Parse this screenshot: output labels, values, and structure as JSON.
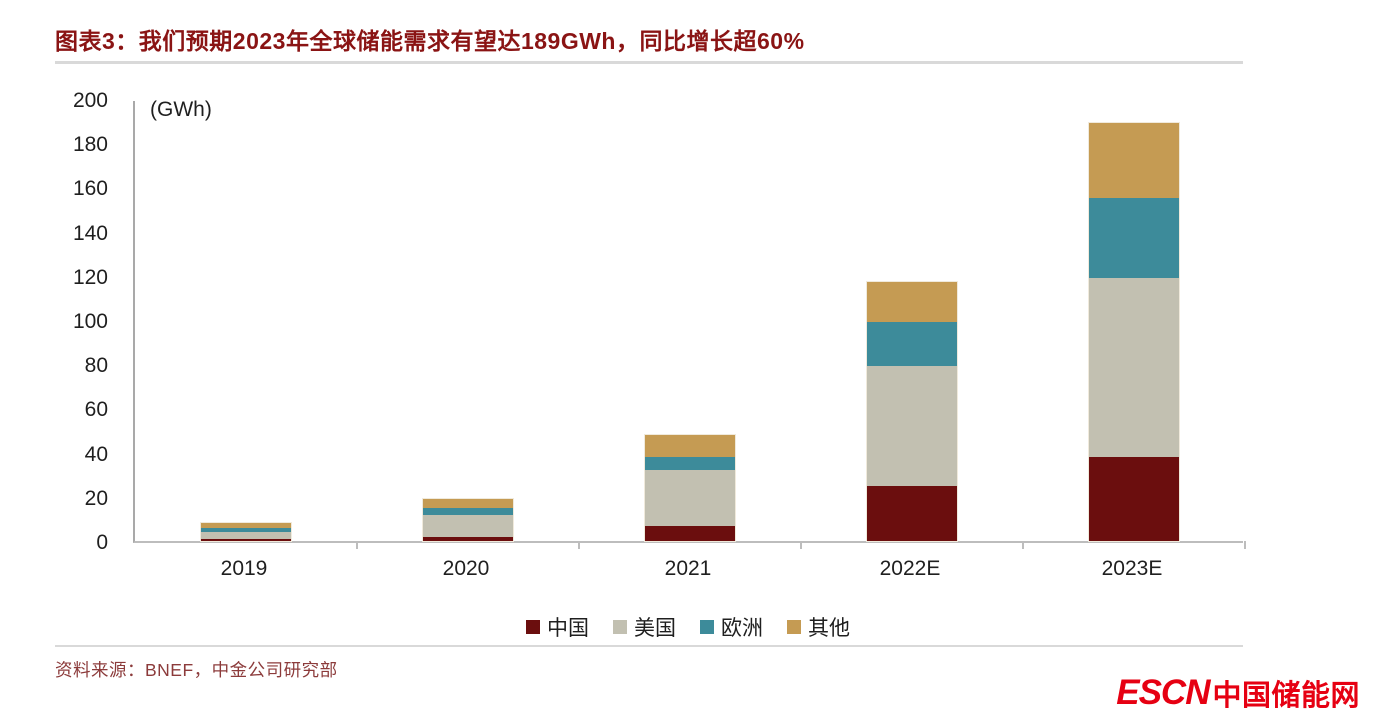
{
  "header": {
    "title": "图表3：我们预期2023年全球储能需求有望达189GWh，同比增长超60%"
  },
  "chart_data": {
    "type": "bar",
    "stacked": true,
    "title": "我们预期2023年全球储能需求有望达189GWh，同比增长超60%",
    "unit_label": "(GWh)",
    "xlabel": "",
    "ylabel": "GWh",
    "categories": [
      "2019",
      "2020",
      "2021",
      "2022E",
      "2023E"
    ],
    "series": [
      {
        "name": "中国",
        "color": "#6B0E0E",
        "values": [
          1,
          2,
          7,
          25,
          38
        ]
      },
      {
        "name": "美国",
        "color": "#C2C0B1",
        "values": [
          3,
          10,
          25,
          54,
          81
        ]
      },
      {
        "name": "欧洲",
        "color": "#3D8B9A",
        "values": [
          2,
          3,
          6,
          20,
          36
        ]
      },
      {
        "name": "其他",
        "color": "#C59B53",
        "values": [
          2,
          4,
          10,
          18,
          34
        ]
      }
    ],
    "ylim": [
      0,
      200
    ],
    "yticks": [
      0,
      20,
      40,
      60,
      80,
      100,
      120,
      140,
      160,
      180,
      200
    ],
    "grid": false,
    "legend_position": "bottom-center"
  },
  "footer": {
    "source": "资料来源：BNEF，中金公司研究部",
    "logo": {
      "latin": "ESCN",
      "cjk": "中国储能网",
      "color": "#E60012"
    }
  },
  "colors": {
    "title_text": "#8A1414",
    "axis_line": "#A9A9A9",
    "baseline": "#BDBDBD",
    "divider": "#D9D9D9",
    "source_text": "#8C3B3B",
    "logo_red": "#E60012"
  }
}
